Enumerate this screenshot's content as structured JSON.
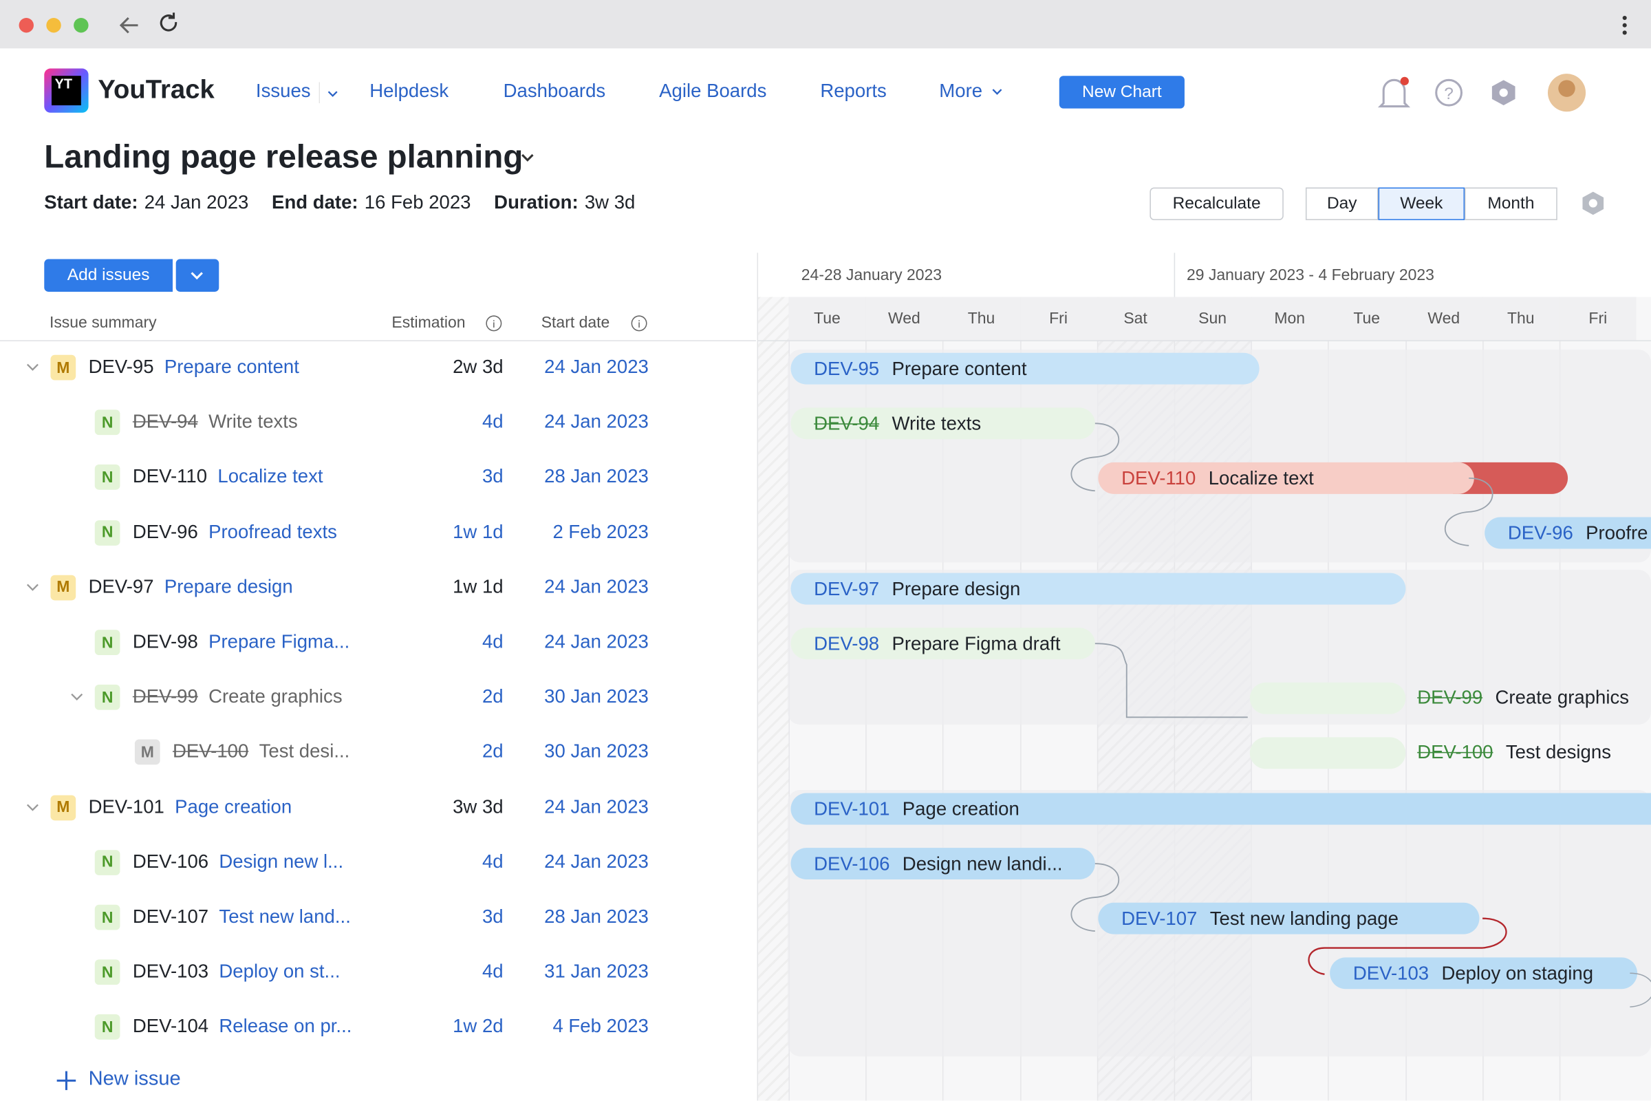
{
  "nav": {
    "brand": "YouTrack",
    "logo": "YT",
    "items": [
      "Issues",
      "Helpdesk",
      "Dashboards",
      "Agile Boards",
      "Reports",
      "More"
    ],
    "new_chart": "New Chart"
  },
  "page": {
    "title": "Landing page release planning",
    "meta": [
      {
        "label": "Start date:",
        "value": "24 Jan 2023"
      },
      {
        "label": "End date:",
        "value": "16 Feb 2023"
      },
      {
        "label": "Duration:",
        "value": "3w 3d"
      }
    ],
    "recalculate": "Recalculate",
    "scales": [
      "Day",
      "Week",
      "Month"
    ],
    "selected_scale": "Week"
  },
  "list": {
    "add_issues": "Add issues",
    "columns": [
      "Issue summary",
      "Estimation",
      "Start date"
    ],
    "issues": [
      {
        "badge": "M",
        "id": "DEV-95",
        "summary": "Prepare content",
        "estimation": "2w 3d",
        "start": "24 Jan 2023",
        "children": [
          {
            "badge": "N",
            "id": "DEV-94",
            "summary": "Write texts",
            "estimation": "4d",
            "start": "24 Jan 2023",
            "resolved": true
          },
          {
            "badge": "N",
            "id": "DEV-110",
            "summary": "Localize text",
            "estimation": "3d",
            "start": "28 Jan 2023"
          },
          {
            "badge": "N",
            "id": "DEV-96",
            "summary": "Proofread texts",
            "estimation": "1w 1d",
            "start": "2 Feb 2023"
          }
        ]
      },
      {
        "badge": "M",
        "id": "DEV-97",
        "summary": "Prepare design",
        "estimation": "1w 1d",
        "start": "24 Jan 2023",
        "children": [
          {
            "badge": "N",
            "id": "DEV-98",
            "summary": "Prepare Figma...",
            "estimation": "4d",
            "start": "24 Jan 2023"
          },
          {
            "badge": "N",
            "id": "DEV-99",
            "summary": "Create graphics",
            "estimation": "2d",
            "start": "30 Jan 2023",
            "resolved": true,
            "children": [
              {
                "badge": "M",
                "id": "DEV-100",
                "summary": "Test desi...",
                "estimation": "2d",
                "start": "30 Jan 2023",
                "resolved": true
              }
            ]
          }
        ]
      },
      {
        "badge": "M",
        "id": "DEV-101",
        "summary": "Page creation",
        "estimation": "3w 3d",
        "start": "24 Jan 2023",
        "children": [
          {
            "badge": "N",
            "id": "DEV-106",
            "summary": "Design new l...",
            "estimation": "4d",
            "start": "24 Jan 2023"
          },
          {
            "badge": "N",
            "id": "DEV-107",
            "summary": "Test new land...",
            "estimation": "3d",
            "start": "28 Jan 2023"
          },
          {
            "badge": "N",
            "id": "DEV-103",
            "summary": "Deploy on st...",
            "estimation": "4d",
            "start": "31 Jan 2023"
          },
          {
            "badge": "N",
            "id": "DEV-104",
            "summary": "Release on pr...",
            "estimation": "1w 2d",
            "start": "4 Feb 2023"
          }
        ]
      }
    ],
    "new_issue": "New issue"
  },
  "gantt": {
    "weeks": [
      "24-28 January 2023",
      "29 January 2023 - 4 February 2023"
    ],
    "days": [
      "Tue",
      "Wed",
      "Thu",
      "Fri",
      "Sat",
      "Sun",
      "Mon",
      "Tue",
      "Wed",
      "Thu",
      "Fri"
    ],
    "bars": [
      {
        "id": "DEV-95",
        "label": "Prepare content",
        "color": "#c6e3f8"
      },
      {
        "id": "DEV-94",
        "label": "Write texts",
        "color": "#e8f4e6",
        "resolved": true
      },
      {
        "id": "DEV-110",
        "label": "Localize text",
        "color": "#f7cdc6",
        "overdue_color": "#d65b58"
      },
      {
        "id": "DEV-96",
        "label": "Proofre",
        "color": "#b9dcf5"
      },
      {
        "id": "DEV-97",
        "label": "Prepare design",
        "color": "#c6e3f8"
      },
      {
        "id": "DEV-98",
        "label": "Prepare Figma draft",
        "color": "#e8f4e6"
      },
      {
        "id": "DEV-99",
        "label": "Create graphics",
        "color": "#e8f4e6",
        "resolved": true
      },
      {
        "id": "DEV-100",
        "label": "Test designs",
        "color": "#e8f4e6",
        "resolved": true
      },
      {
        "id": "DEV-101",
        "label": "Page creation",
        "color": "#b9dcf5"
      },
      {
        "id": "DEV-106",
        "label": "Design new landi...",
        "color": "#b9dcf5"
      },
      {
        "id": "DEV-107",
        "label": "Test new landing page",
        "color": "#b9dcf5"
      },
      {
        "id": "DEV-103",
        "label": "Deploy on staging",
        "color": "#b9dcf5"
      }
    ]
  }
}
